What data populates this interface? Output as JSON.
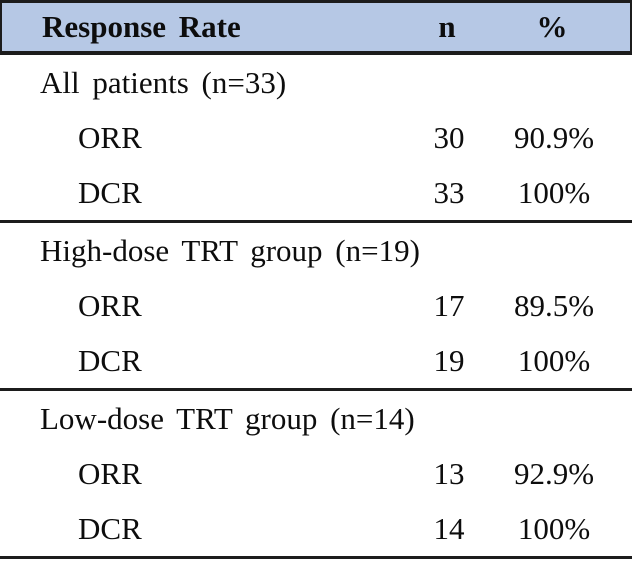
{
  "colors": {
    "header_bg": "#b6c8e5",
    "border": "#1c1c1c",
    "text": "#0d0d0d",
    "page_bg": "#ffffff"
  },
  "table": {
    "header": {
      "response_rate": "Response Rate",
      "n": "n",
      "percent": "%"
    },
    "sections": [
      {
        "title": "All patients (n=33)",
        "rows": [
          {
            "label": "ORR",
            "n": "30",
            "percent": "90.9%"
          },
          {
            "label": "DCR",
            "n": "33",
            "percent": "100%"
          }
        ]
      },
      {
        "title": "High-dose TRT group (n=19)",
        "rows": [
          {
            "label": "ORR",
            "n": "17",
            "percent": "89.5%"
          },
          {
            "label": "DCR",
            "n": "19",
            "percent": "100%"
          }
        ]
      },
      {
        "title": "Low-dose TRT group (n=14)",
        "rows": [
          {
            "label": "ORR",
            "n": "13",
            "percent": "92.9%"
          },
          {
            "label": "DCR",
            "n": "14",
            "percent": "100%"
          }
        ]
      }
    ]
  },
  "chart_data": {
    "type": "table",
    "title": "Response Rate",
    "columns": [
      "Response Rate",
      "n",
      "%"
    ],
    "rows": [
      [
        "All patients (n=33)",
        "",
        ""
      ],
      [
        "ORR",
        "30",
        "90.9%"
      ],
      [
        "DCR",
        "33",
        "100%"
      ],
      [
        "High-dose TRT group (n=19)",
        "",
        ""
      ],
      [
        "ORR",
        "17",
        "89.5%"
      ],
      [
        "DCR",
        "19",
        "100%"
      ],
      [
        "Low-dose TRT group (n=14)",
        "",
        ""
      ],
      [
        "ORR",
        "13",
        "92.9%"
      ],
      [
        "DCR",
        "14",
        "100%"
      ]
    ]
  }
}
